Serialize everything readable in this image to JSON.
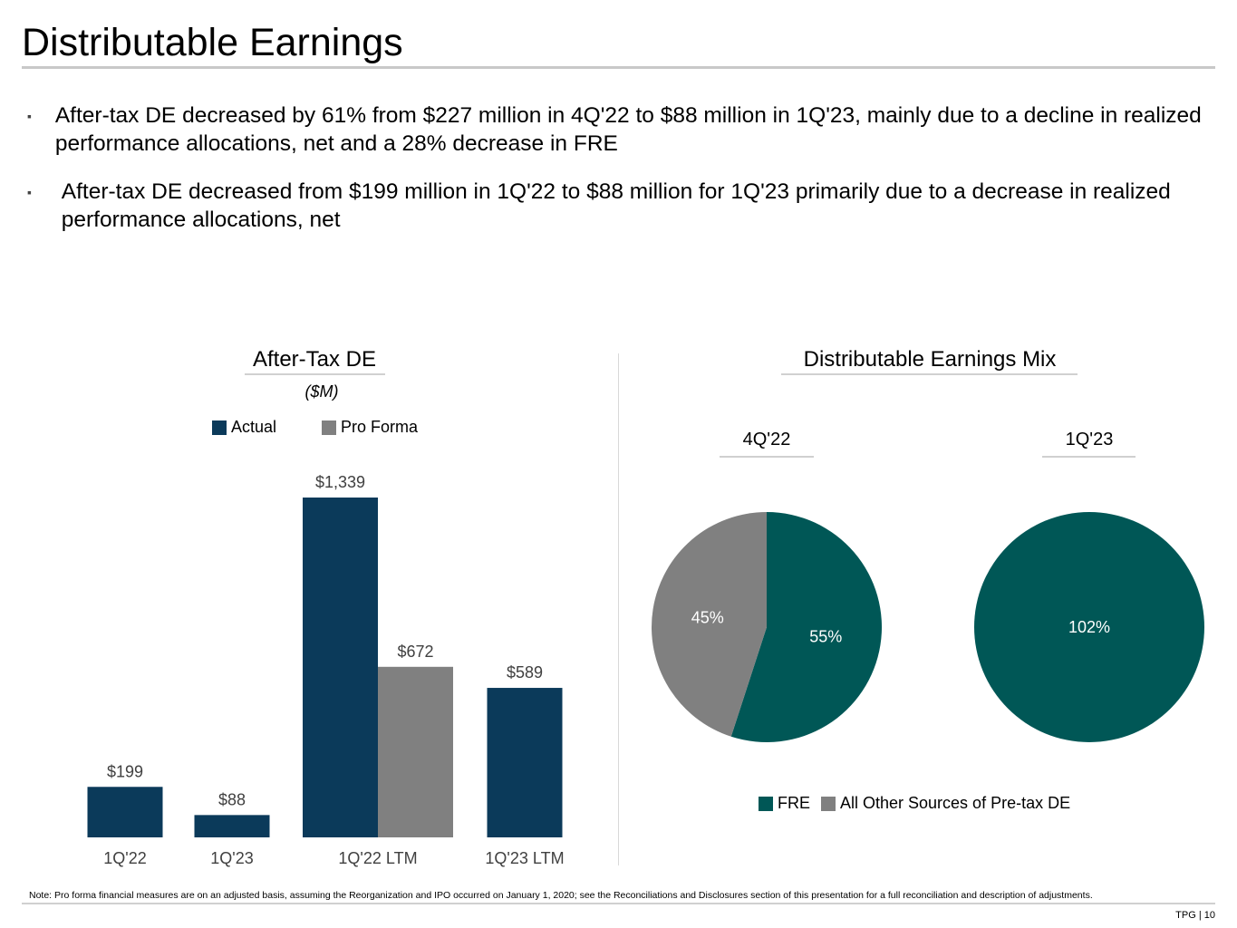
{
  "page": {
    "title": "Distributable Earnings",
    "bullets": [
      "After-tax DE decreased by 61% from $227 million in 4Q'22 to $88 million in 1Q'23, mainly due to a decline in realized performance allocations, net and a 28% decrease in FRE",
      "After-tax DE decreased from $199 million in 1Q'22 to $88 million for 1Q'23 primarily due to a decrease in realized performance allocations, net"
    ],
    "bullet_glyph": "▪",
    "note": "Note: Pro forma financial measures are on an adjusted basis, assuming the Reorganization and IPO occurred on January 1, 2020; see the Reconciliations and Disclosures section of this presentation for a full reconciliation and description of adjustments.",
    "page_number": "TPG | 10"
  },
  "colors": {
    "navy": "#0b3a5a",
    "gray": "#808080",
    "teal": "#005756"
  },
  "chart_data": [
    {
      "type": "bar",
      "title": "After-Tax DE",
      "subtitle": "($M)",
      "categories": [
        "1Q'22",
        "1Q'23",
        "1Q'22 LTM",
        "1Q'23 LTM"
      ],
      "series": [
        {
          "name": "Actual",
          "values": [
            199,
            88,
            1339,
            589
          ],
          "labels": [
            "$199",
            "$88",
            "$1,339",
            "$589"
          ]
        },
        {
          "name": "Pro Forma",
          "values": [
            null,
            null,
            672,
            null
          ],
          "labels": [
            "",
            "",
            "$672",
            ""
          ]
        }
      ],
      "ylim": [
        0,
        1339
      ],
      "legend": "top"
    },
    {
      "type": "pie",
      "title": "Distributable Earnings Mix",
      "legend": [
        "FRE",
        "All Other Sources of Pre-tax DE"
      ],
      "pies": [
        {
          "label": "4Q'22",
          "slices": [
            {
              "name": "FRE",
              "value": 55,
              "label": "55%"
            },
            {
              "name": "All Other Sources of Pre-tax DE",
              "value": 45,
              "label": "45%"
            }
          ]
        },
        {
          "label": "1Q'23",
          "slices": [
            {
              "name": "FRE",
              "value": 102,
              "label": "102%"
            }
          ]
        }
      ]
    }
  ]
}
